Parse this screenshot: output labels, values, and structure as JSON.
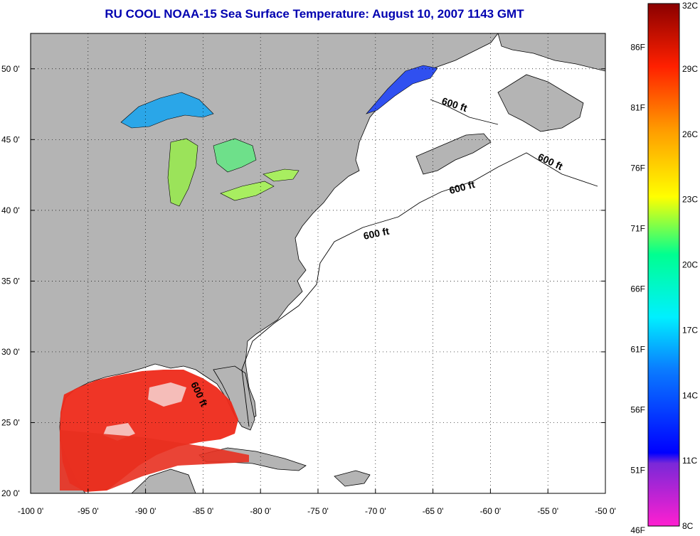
{
  "title": "RU COOL  NOAA-15  Sea Surface Temperature:  August 10, 2007 1143 GMT",
  "map": {
    "lon_range": [
      -100,
      -50
    ],
    "lat_range": [
      20,
      52.5
    ],
    "lon_ticks": [
      "-100 0'",
      "-95 0'",
      "-90 0'",
      "-85 0'",
      "-80 0'",
      "-75 0'",
      "-70 0'",
      "-65 0'",
      "-60 0'",
      "-55 0'",
      "-50 0'"
    ],
    "lat_ticks": [
      "50 0'",
      "45 0'",
      "40 0'",
      "35 0'",
      "30 0'",
      "25 0'",
      "20 0'"
    ],
    "grid": true,
    "contour_labels": [
      "600 ft",
      "600 ft",
      "600 ft",
      "600 ft",
      "600 ft"
    ],
    "colors": {
      "land": "#b4b4b4",
      "ocean": "#ffffff",
      "coast": "#000000"
    }
  },
  "colorbar": {
    "celsius": [
      "32C",
      "29C",
      "26C",
      "23C",
      "20C",
      "17C",
      "14C",
      "11C",
      "8C"
    ],
    "fahrenheit": [
      "86F",
      "81F",
      "76F",
      "71F",
      "66F",
      "61F",
      "56F",
      "51F",
      "46F"
    ]
  }
}
